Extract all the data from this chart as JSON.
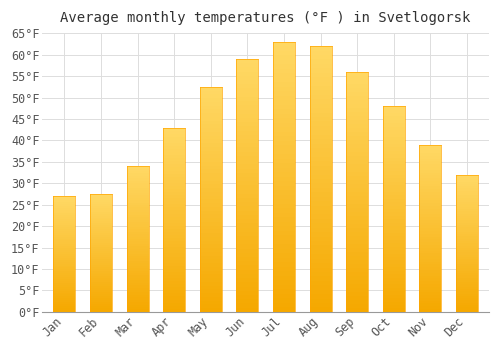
{
  "title": "Average monthly temperatures (°F ) in Svetlogorsk",
  "months": [
    "Jan",
    "Feb",
    "Mar",
    "Apr",
    "May",
    "Jun",
    "Jul",
    "Aug",
    "Sep",
    "Oct",
    "Nov",
    "Dec"
  ],
  "values": [
    27,
    27.5,
    34,
    43,
    52.5,
    59,
    63,
    62,
    56,
    48,
    39,
    32
  ],
  "bar_color_bottom": "#F5A800",
  "bar_color_top": "#FFD966",
  "bar_color_mid": "#FFC125",
  "background_color": "#FFFFFF",
  "grid_color": "#DDDDDD",
  "ylim": [
    0,
    65
  ],
  "yticks": [
    0,
    5,
    10,
    15,
    20,
    25,
    30,
    35,
    40,
    45,
    50,
    55,
    60,
    65
  ],
  "title_fontsize": 10,
  "tick_fontsize": 8.5,
  "font_family": "monospace",
  "bar_width": 0.6
}
